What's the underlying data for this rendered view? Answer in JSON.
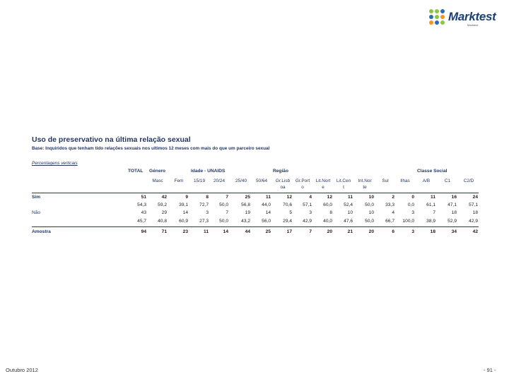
{
  "logo": {
    "brand": "Marktest",
    "tagline": "Marktest"
  },
  "title": "Uso de preservativo na última relação sexual",
  "base": "Base: Inquiridos que tenham tido relações sexuais nos ultimos 12 meses com mais do que um parceiro sexual",
  "percent_note": "Percentagens verticais",
  "groups": [
    "TOTAL",
    "Género",
    "Idade - UNAIDS",
    "Região",
    "Classe Social"
  ],
  "columns": [
    [
      "",
      ""
    ],
    [
      "",
      "Masc"
    ],
    [
      "",
      "Fem"
    ],
    [
      "",
      "15/19"
    ],
    [
      "",
      "20/24"
    ],
    [
      "",
      "25/40"
    ],
    [
      "",
      "50/64"
    ],
    [
      "Gr.Lisb",
      "oa"
    ],
    [
      "Gr.Port",
      "o"
    ],
    [
      "Lit.Nort",
      "e"
    ],
    [
      "Lit.Cen",
      "t"
    ],
    [
      "Int.Nor",
      "te"
    ],
    [
      "",
      "Sul"
    ],
    [
      "",
      "Ilhas"
    ],
    [
      "",
      "A/B"
    ],
    [
      "",
      "C1"
    ],
    [
      "",
      "C2/D"
    ]
  ],
  "rows": [
    {
      "label": "Sim",
      "bold": true,
      "values": [
        "51",
        "42",
        "9",
        "8",
        "7",
        "25",
        "11",
        "12",
        "4",
        "12",
        "11",
        "10",
        "2",
        "0",
        "11",
        "16",
        "24"
      ]
    },
    {
      "label": "",
      "bold": false,
      "values": [
        "54,3",
        "59,2",
        "39,1",
        "72,7",
        "50,0",
        "56,8",
        "44,0",
        "70,6",
        "57,1",
        "60,0",
        "52,4",
        "50,0",
        "33,3",
        "0,0",
        "61,1",
        "47,1",
        "57,1"
      ]
    },
    {
      "label": "Não",
      "bold": false,
      "values": [
        "43",
        "29",
        "14",
        "3",
        "7",
        "19",
        "14",
        "5",
        "3",
        "8",
        "10",
        "10",
        "4",
        "3",
        "7",
        "18",
        "18"
      ]
    },
    {
      "label": "",
      "bold": false,
      "values": [
        "45,7",
        "40,8",
        "60,9",
        "27,3",
        "50,0",
        "43,2",
        "56,0",
        "29,4",
        "42,9",
        "40,0",
        "47,6",
        "50,0",
        "66,7",
        "100,0",
        "38,9",
        "52,9",
        "42,9"
      ]
    },
    {
      "label": "Amostra",
      "bold": true,
      "values": [
        "94",
        "71",
        "23",
        "11",
        "14",
        "44",
        "25",
        "17",
        "7",
        "20",
        "21",
        "20",
        "6",
        "3",
        "18",
        "34",
        "42"
      ]
    }
  ],
  "footer": {
    "date": "Outubro 2012",
    "page": "- 91 -"
  },
  "colors": {
    "navy": "#24375f",
    "green": "#8dc63f",
    "blue": "#2e6bb3",
    "orange": "#f7941d"
  }
}
